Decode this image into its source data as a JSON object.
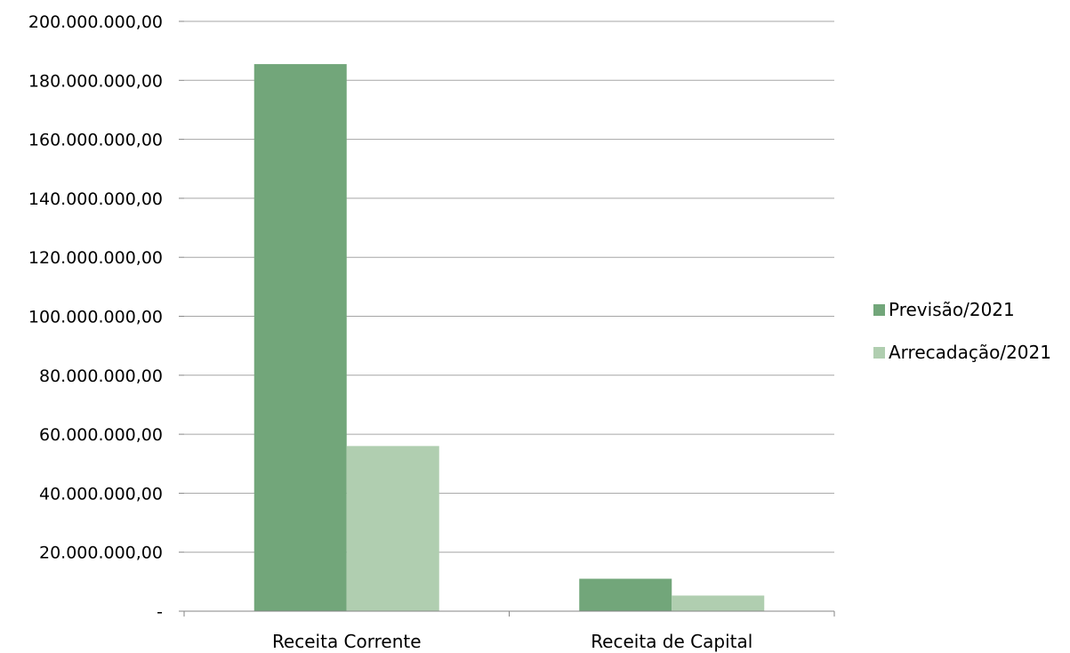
{
  "chart_data": {
    "type": "bar",
    "title": "",
    "xlabel": "",
    "ylabel": "",
    "categories": [
      "Receita Corrente",
      "Receita de Capital"
    ],
    "series": [
      {
        "name": "Previsão/2021",
        "color": "#72a67a",
        "values": [
          185500000,
          11000000
        ]
      },
      {
        "name": "Arrecadação/2021",
        "color": "#b0ceb0",
        "values": [
          56000000,
          5300000
        ]
      }
    ],
    "ylim": [
      0,
      200000000
    ],
    "yticks": [
      0,
      20000000,
      40000000,
      60000000,
      80000000,
      100000000,
      120000000,
      140000000,
      160000000,
      180000000,
      200000000
    ],
    "ytick_labels": [
      "-",
      "20.000.000,00",
      "40.000.000,00",
      "60.000.000,00",
      "80.000.000,00",
      "100.000.000,00",
      "120.000.000,00",
      "140.000.000,00",
      "160.000.000,00",
      "180.000.000,00",
      "200.000.000,00"
    ],
    "grid": true,
    "legend_position": "right"
  }
}
